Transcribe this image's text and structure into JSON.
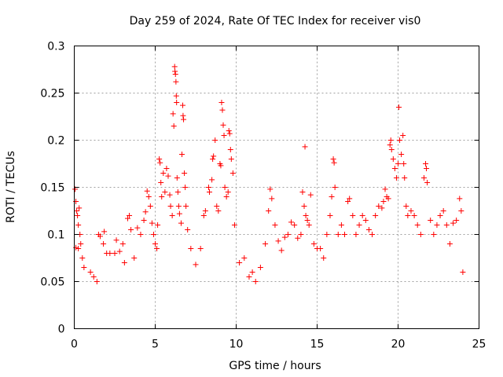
{
  "chart_data": {
    "type": "scatter",
    "title": "Day 259 of 2024, Rate Of TEC Index for receiver vis0",
    "xlabel": "GPS time / hours",
    "ylabel": "ROTI / TECUs",
    "xlim": [
      0,
      25
    ],
    "ylim": [
      0,
      0.3
    ],
    "x_ticks": [
      "0",
      "5",
      "10",
      "15",
      "20",
      "25"
    ],
    "y_ticks": [
      "0",
      "0.05",
      "0.1",
      "0.15",
      "0.2",
      "0.25",
      "0.3"
    ],
    "x_tick_values": [
      0,
      5,
      10,
      15,
      20,
      25
    ],
    "y_tick_values": [
      0,
      0.05,
      0.1,
      0.15,
      0.2,
      0.25,
      0.3
    ],
    "grid": true,
    "legend": "none",
    "marker": "plus",
    "color": "#ff0000",
    "data_range_x": [
      0,
      24
    ],
    "series": [
      {
        "points": [
          [
            0.05,
            0.148
          ],
          [
            0.1,
            0.135
          ],
          [
            0.15,
            0.125
          ],
          [
            0.2,
            0.12
          ],
          [
            0.25,
            0.11
          ],
          [
            0.3,
            0.128
          ],
          [
            0.35,
            0.1
          ],
          [
            0.4,
            0.09
          ],
          [
            0.5,
            0.075
          ],
          [
            0.6,
            0.065
          ],
          [
            0.1,
            0.086
          ],
          [
            0.25,
            0.085
          ],
          [
            1.0,
            0.06
          ],
          [
            1.2,
            0.055
          ],
          [
            1.4,
            0.05
          ],
          [
            1.5,
            0.1
          ],
          [
            1.6,
            0.098
          ],
          [
            1.8,
            0.09
          ],
          [
            1.85,
            0.103
          ],
          [
            2.0,
            0.08
          ],
          [
            2.2,
            0.08
          ],
          [
            2.5,
            0.08
          ],
          [
            2.6,
            0.094
          ],
          [
            2.8,
            0.082
          ],
          [
            3.0,
            0.09
          ],
          [
            3.1,
            0.07
          ],
          [
            3.3,
            0.117
          ],
          [
            3.4,
            0.12
          ],
          [
            3.5,
            0.105
          ],
          [
            3.7,
            0.075
          ],
          [
            3.9,
            0.107
          ],
          [
            4.1,
            0.1
          ],
          [
            4.3,
            0.115
          ],
          [
            4.4,
            0.124
          ],
          [
            4.5,
            0.146
          ],
          [
            4.6,
            0.14
          ],
          [
            4.7,
            0.13
          ],
          [
            4.8,
            0.112
          ],
          [
            4.9,
            0.1
          ],
          [
            5.0,
            0.09
          ],
          [
            5.1,
            0.085
          ],
          [
            5.15,
            0.11
          ],
          [
            5.25,
            0.18
          ],
          [
            5.3,
            0.176
          ],
          [
            5.35,
            0.155
          ],
          [
            5.4,
            0.14
          ],
          [
            5.5,
            0.165
          ],
          [
            5.6,
            0.145
          ],
          [
            5.7,
            0.17
          ],
          [
            5.8,
            0.162
          ],
          [
            5.9,
            0.142
          ],
          [
            5.95,
            0.13
          ],
          [
            6.05,
            0.12
          ],
          [
            6.1,
            0.228
          ],
          [
            6.15,
            0.215
          ],
          [
            6.2,
            0.278
          ],
          [
            6.22,
            0.273
          ],
          [
            6.25,
            0.27
          ],
          [
            6.28,
            0.262
          ],
          [
            6.3,
            0.247
          ],
          [
            6.32,
            0.24
          ],
          [
            6.35,
            0.16
          ],
          [
            6.4,
            0.145
          ],
          [
            6.45,
            0.13
          ],
          [
            6.5,
            0.122
          ],
          [
            6.6,
            0.112
          ],
          [
            6.65,
            0.185
          ],
          [
            6.7,
            0.237
          ],
          [
            6.72,
            0.226
          ],
          [
            6.75,
            0.222
          ],
          [
            6.8,
            0.165
          ],
          [
            6.85,
            0.15
          ],
          [
            6.9,
            0.13
          ],
          [
            7.0,
            0.105
          ],
          [
            7.2,
            0.085
          ],
          [
            7.5,
            0.068
          ],
          [
            7.8,
            0.085
          ],
          [
            8.0,
            0.12
          ],
          [
            8.1,
            0.125
          ],
          [
            8.3,
            0.15
          ],
          [
            8.35,
            0.145
          ],
          [
            8.5,
            0.158
          ],
          [
            8.55,
            0.18
          ],
          [
            8.6,
            0.183
          ],
          [
            8.7,
            0.2
          ],
          [
            8.8,
            0.13
          ],
          [
            8.9,
            0.125
          ],
          [
            9.0,
            0.175
          ],
          [
            9.05,
            0.173
          ],
          [
            9.1,
            0.24
          ],
          [
            9.15,
            0.232
          ],
          [
            9.2,
            0.216
          ],
          [
            9.25,
            0.205
          ],
          [
            9.3,
            0.15
          ],
          [
            9.4,
            0.14
          ],
          [
            9.5,
            0.145
          ],
          [
            9.55,
            0.21
          ],
          [
            9.6,
            0.207
          ],
          [
            9.65,
            0.19
          ],
          [
            9.7,
            0.18
          ],
          [
            9.8,
            0.165
          ],
          [
            9.9,
            0.11
          ],
          [
            10.2,
            0.07
          ],
          [
            10.5,
            0.075
          ],
          [
            10.8,
            0.055
          ],
          [
            11.0,
            0.06
          ],
          [
            11.2,
            0.05
          ],
          [
            11.5,
            0.065
          ],
          [
            11.8,
            0.09
          ],
          [
            12.0,
            0.125
          ],
          [
            12.1,
            0.148
          ],
          [
            12.2,
            0.138
          ],
          [
            12.4,
            0.11
          ],
          [
            12.6,
            0.093
          ],
          [
            12.8,
            0.083
          ],
          [
            13.0,
            0.097
          ],
          [
            13.2,
            0.1
          ],
          [
            13.4,
            0.113
          ],
          [
            13.6,
            0.11
          ],
          [
            13.8,
            0.096
          ],
          [
            14.0,
            0.1
          ],
          [
            14.1,
            0.145
          ],
          [
            14.2,
            0.13
          ],
          [
            14.25,
            0.193
          ],
          [
            14.3,
            0.12
          ],
          [
            14.4,
            0.115
          ],
          [
            14.5,
            0.11
          ],
          [
            14.6,
            0.142
          ],
          [
            14.8,
            0.09
          ],
          [
            15.0,
            0.085
          ],
          [
            15.2,
            0.085
          ],
          [
            15.4,
            0.075
          ],
          [
            15.6,
            0.1
          ],
          [
            15.8,
            0.12
          ],
          [
            15.9,
            0.14
          ],
          [
            16.0,
            0.18
          ],
          [
            16.05,
            0.176
          ],
          [
            16.1,
            0.15
          ],
          [
            16.3,
            0.1
          ],
          [
            16.5,
            0.11
          ],
          [
            16.7,
            0.1
          ],
          [
            16.9,
            0.135
          ],
          [
            17.0,
            0.138
          ],
          [
            17.2,
            0.12
          ],
          [
            17.4,
            0.1
          ],
          [
            17.6,
            0.11
          ],
          [
            17.8,
            0.12
          ],
          [
            18.0,
            0.115
          ],
          [
            18.2,
            0.105
          ],
          [
            18.4,
            0.1
          ],
          [
            18.6,
            0.12
          ],
          [
            18.8,
            0.13
          ],
          [
            19.0,
            0.128
          ],
          [
            19.1,
            0.135
          ],
          [
            19.2,
            0.148
          ],
          [
            19.3,
            0.14
          ],
          [
            19.4,
            0.138
          ],
          [
            19.5,
            0.195
          ],
          [
            19.55,
            0.2
          ],
          [
            19.6,
            0.19
          ],
          [
            19.7,
            0.18
          ],
          [
            19.8,
            0.17
          ],
          [
            19.9,
            0.16
          ],
          [
            20.0,
            0.175
          ],
          [
            20.05,
            0.235
          ],
          [
            20.1,
            0.2
          ],
          [
            20.2,
            0.185
          ],
          [
            20.3,
            0.205
          ],
          [
            20.35,
            0.175
          ],
          [
            20.4,
            0.16
          ],
          [
            20.5,
            0.13
          ],
          [
            20.6,
            0.12
          ],
          [
            20.8,
            0.125
          ],
          [
            21.0,
            0.12
          ],
          [
            21.2,
            0.11
          ],
          [
            21.4,
            0.1
          ],
          [
            21.6,
            0.16
          ],
          [
            21.7,
            0.175
          ],
          [
            21.75,
            0.17
          ],
          [
            21.8,
            0.155
          ],
          [
            22.0,
            0.115
          ],
          [
            22.2,
            0.1
          ],
          [
            22.4,
            0.11
          ],
          [
            22.6,
            0.12
          ],
          [
            22.8,
            0.125
          ],
          [
            23.0,
            0.11
          ],
          [
            23.2,
            0.09
          ],
          [
            23.4,
            0.112
          ],
          [
            23.6,
            0.115
          ],
          [
            23.8,
            0.138
          ],
          [
            23.9,
            0.125
          ],
          [
            24.0,
            0.06
          ]
        ]
      }
    ]
  }
}
